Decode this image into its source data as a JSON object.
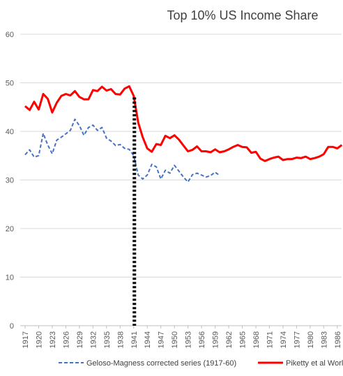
{
  "chart_data": {
    "type": "line",
    "title": "Top 10% US Income Share",
    "xlabel": "",
    "ylabel": "",
    "ylim": [
      0,
      60
    ],
    "y_ticks": [
      "0",
      "10",
      "20",
      "30",
      "40",
      "50",
      "60"
    ],
    "x_tick_labels": [
      "1917",
      "1920",
      "1923",
      "1926",
      "1929",
      "1932",
      "1935",
      "1938",
      "1941",
      "1944",
      "1947",
      "1950",
      "1953",
      "1956",
      "1959",
      "1962",
      "1965",
      "1968",
      "1971",
      "1974",
      "1977",
      "1980",
      "1983",
      "1986"
    ],
    "grid": "horizontal",
    "legend_position": "bottom",
    "colors": {
      "series1": "#4472c4",
      "series2": "#ff0000",
      "marker": "#000000",
      "grid": "#d9d9d9",
      "axis": "#bfbfbf"
    },
    "annotation": {
      "type": "vertical-dotted-line",
      "x": 1941
    },
    "series": [
      {
        "name": "Geloso-Magness corrected series (1917-60)",
        "style": "dashed",
        "x": [
          1917,
          1918,
          1919,
          1920,
          1921,
          1922,
          1923,
          1924,
          1925,
          1926,
          1927,
          1928,
          1929,
          1930,
          1931,
          1932,
          1933,
          1934,
          1935,
          1936,
          1937,
          1938,
          1939,
          1940,
          1941,
          1942,
          1943,
          1944,
          1945,
          1946,
          1947,
          1948,
          1949,
          1950,
          1951,
          1952,
          1953,
          1954,
          1955,
          1956,
          1957,
          1958,
          1959,
          1960
        ],
        "values": [
          35.2,
          36.2,
          34.7,
          35.0,
          39.6,
          37.2,
          35.4,
          38.2,
          38.8,
          39.5,
          40.2,
          42.5,
          41.2,
          39.2,
          40.8,
          41.3,
          40.2,
          40.8,
          38.6,
          38.0,
          37.1,
          37.3,
          36.5,
          36.3,
          35.0,
          31.0,
          30.2,
          31.0,
          33.2,
          32.7,
          30.2,
          32.0,
          31.4,
          33.0,
          31.8,
          30.6,
          29.6,
          31.1,
          31.4,
          31.0,
          30.6,
          30.9,
          31.6,
          30.9
        ]
      },
      {
        "name": "Piketty et al World",
        "style": "solid",
        "x": [
          1917,
          1918,
          1919,
          1920,
          1921,
          1922,
          1923,
          1924,
          1925,
          1926,
          1927,
          1928,
          1929,
          1930,
          1931,
          1932,
          1933,
          1934,
          1935,
          1936,
          1937,
          1938,
          1939,
          1940,
          1941,
          1942,
          1943,
          1944,
          1945,
          1946,
          1947,
          1948,
          1949,
          1950,
          1951,
          1952,
          1953,
          1954,
          1955,
          1956,
          1957,
          1958,
          1959,
          1960,
          1961,
          1962,
          1963,
          1964,
          1965,
          1966,
          1967,
          1968,
          1969,
          1970,
          1971,
          1972,
          1973,
          1974,
          1975,
          1976,
          1977,
          1978,
          1979,
          1980,
          1981,
          1982,
          1983,
          1984,
          1985,
          1986,
          1987
        ],
        "values": [
          45.2,
          44.4,
          46.1,
          44.5,
          47.7,
          46.7,
          43.9,
          45.9,
          47.3,
          47.7,
          47.4,
          48.3,
          47.1,
          46.6,
          46.6,
          48.5,
          48.3,
          49.2,
          48.4,
          48.7,
          47.7,
          47.6,
          48.8,
          49.3,
          47.3,
          41.8,
          38.8,
          36.5,
          35.8,
          37.4,
          37.2,
          39.1,
          38.6,
          39.2,
          38.3,
          37.1,
          35.9,
          36.2,
          36.9,
          35.9,
          35.9,
          35.7,
          36.3,
          35.7,
          35.9,
          36.3,
          36.8,
          37.2,
          36.8,
          36.7,
          35.6,
          35.8,
          34.4,
          33.9,
          34.3,
          34.6,
          34.8,
          34.1,
          34.3,
          34.3,
          34.6,
          34.5,
          34.8,
          34.3,
          34.5,
          34.8,
          35.3,
          36.8,
          36.8,
          36.5,
          37.2
        ]
      }
    ]
  }
}
